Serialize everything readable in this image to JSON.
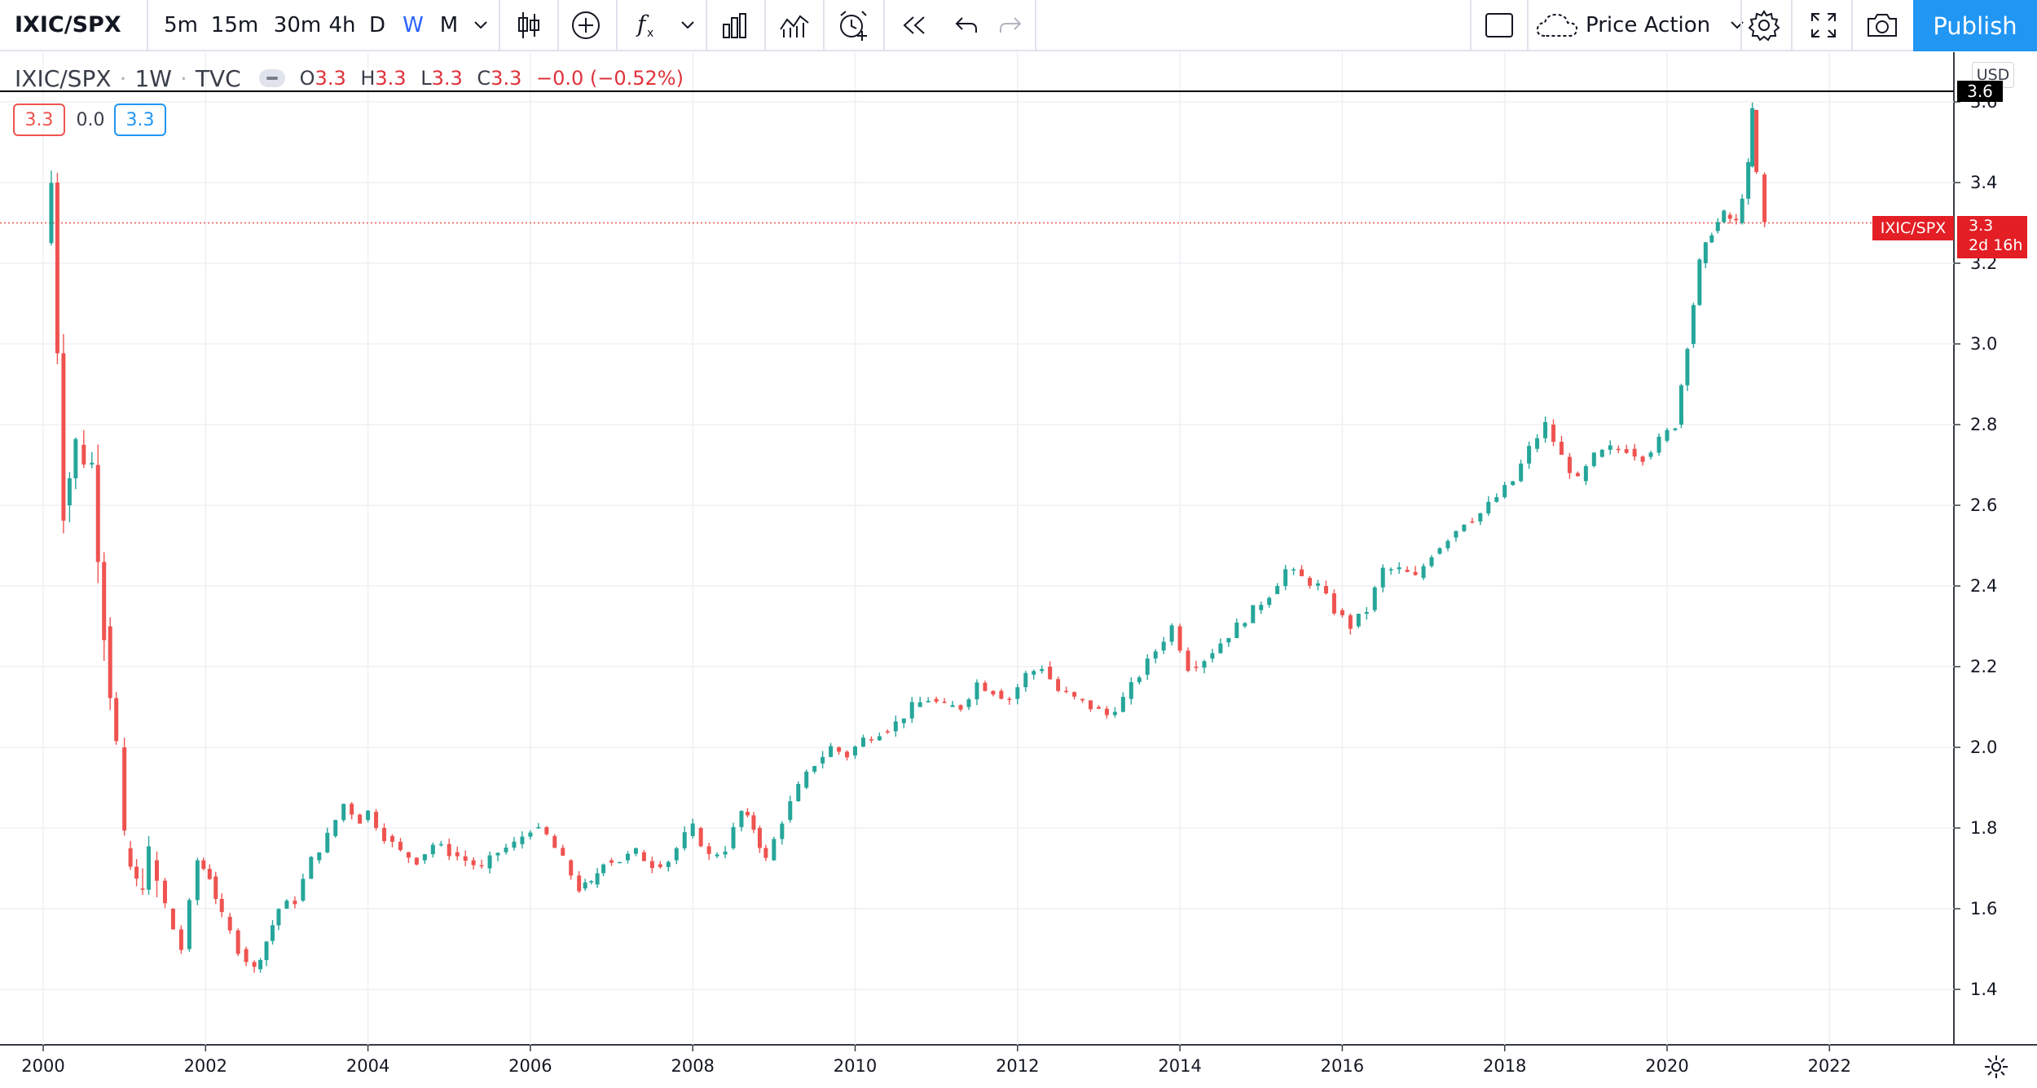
{
  "toolbar": {
    "symbol": "IXIC/SPX",
    "intervals": [
      "5m",
      "15m",
      "30m",
      "4h",
      "D",
      "W",
      "M"
    ],
    "active_interval": "W",
    "template_name": "Price Action",
    "publish_label": "Publish",
    "icons": [
      "chevron-down-icon",
      "candlestick-icon",
      "add-compare-icon",
      "indicators-icon",
      "chevron-down-icon",
      "financials-icon",
      "templates-icon",
      "alert-icon",
      "replay-icon",
      "undo-icon",
      "redo-icon",
      "layout-icon",
      "cloud-icon",
      "settings-icon",
      "fullscreen-icon",
      "snapshot-icon"
    ]
  },
  "legend": {
    "symbol": "IXIC/SPX",
    "interval": "1W",
    "source": "TVC",
    "o_label": "O",
    "o": "3.3",
    "h_label": "H",
    "h": "3.3",
    "l_label": "L",
    "l": "3.3",
    "c_label": "C",
    "c": "3.3",
    "change": "−0.0 (−0.52%)",
    "boxes": {
      "sell": "3.3",
      "spread": "0.0",
      "buy": "3.3"
    }
  },
  "price_axis": {
    "currency": "USD",
    "ticks": [
      "1.4",
      "1.6",
      "1.8",
      "2.0",
      "2.2",
      "2.4",
      "2.6",
      "2.8",
      "3.0",
      "3.2",
      "3.4",
      "3.6"
    ],
    "last_price_label": "IXIC/SPX",
    "last_price": "3.3",
    "countdown": "2d 16h",
    "high_marker": "3.6"
  },
  "time_axis": {
    "ticks": [
      "2000",
      "2002",
      "2004",
      "2006",
      "2008",
      "2010",
      "2012",
      "2014",
      "2016",
      "2018",
      "2020",
      "2022"
    ]
  },
  "colors": {
    "up": "#26a69a",
    "down": "#ef5350",
    "accent": "#2962ff",
    "publish": "#2196f3",
    "last_price_bg": "#e31e24"
  },
  "chart_data": {
    "type": "candlestick",
    "symbol": "IXIC/SPX",
    "interval": "1W",
    "x": [
      2000.0,
      2000.1,
      2000.25,
      2000.4,
      2000.6,
      2000.75,
      2000.9,
      2001.0,
      2001.15,
      2001.3,
      2001.5,
      2001.7,
      2001.9,
      2002.05,
      2002.2,
      2002.4,
      2002.6,
      2002.75,
      2002.9,
      2003.1,
      2003.3,
      2003.5,
      2003.7,
      2003.9,
      2004.0,
      2004.2,
      2004.4,
      2004.6,
      2004.8,
      2005.0,
      2005.2,
      2005.4,
      2005.6,
      2005.8,
      2006.0,
      2006.2,
      2006.4,
      2006.6,
      2006.75,
      2006.9,
      2007.1,
      2007.3,
      2007.5,
      2007.7,
      2007.9,
      2008.0,
      2008.2,
      2008.4,
      2008.6,
      2008.75,
      2008.9,
      2009.1,
      2009.3,
      2009.5,
      2009.7,
      2009.9,
      2010.1,
      2010.3,
      2010.5,
      2010.7,
      2010.9,
      2011.1,
      2011.3,
      2011.5,
      2011.7,
      2011.9,
      2012.1,
      2012.3,
      2012.5,
      2012.7,
      2012.9,
      2013.1,
      2013.3,
      2013.5,
      2013.7,
      2013.9,
      2014.1,
      2014.3,
      2014.5,
      2014.7,
      2014.9,
      2015.1,
      2015.3,
      2015.5,
      2015.7,
      2015.9,
      2016.1,
      2016.3,
      2016.5,
      2016.7,
      2016.9,
      2017.1,
      2017.3,
      2017.5,
      2017.7,
      2017.9,
      2018.1,
      2018.3,
      2018.5,
      2018.7,
      2018.9,
      2019.1,
      2019.3,
      2019.5,
      2019.7,
      2019.9,
      2020.1,
      2020.25,
      2020.4,
      2020.55,
      2020.7,
      2020.85,
      2021.0,
      2021.05,
      2021.1,
      2021.2
    ],
    "y": [
      3.25,
      3.4,
      2.6,
      2.75,
      2.7,
      2.3,
      2.0,
      1.75,
      1.65,
      1.72,
      1.6,
      1.5,
      1.72,
      1.68,
      1.58,
      1.5,
      1.45,
      1.52,
      1.6,
      1.62,
      1.72,
      1.78,
      1.86,
      1.82,
      1.84,
      1.78,
      1.74,
      1.72,
      1.76,
      1.74,
      1.72,
      1.7,
      1.74,
      1.76,
      1.8,
      1.78,
      1.72,
      1.65,
      1.66,
      1.72,
      1.72,
      1.74,
      1.71,
      1.72,
      1.78,
      1.8,
      1.73,
      1.75,
      1.84,
      1.8,
      1.72,
      1.82,
      1.9,
      1.96,
      2.0,
      1.98,
      2.02,
      2.04,
      2.06,
      2.1,
      2.12,
      2.1,
      2.1,
      2.16,
      2.14,
      2.12,
      2.18,
      2.2,
      2.14,
      2.12,
      2.1,
      2.08,
      2.12,
      2.18,
      2.24,
      2.3,
      2.2,
      2.22,
      2.26,
      2.3,
      2.34,
      2.38,
      2.44,
      2.42,
      2.4,
      2.34,
      2.3,
      2.34,
      2.44,
      2.44,
      2.42,
      2.48,
      2.52,
      2.56,
      2.58,
      2.62,
      2.66,
      2.74,
      2.8,
      2.72,
      2.66,
      2.72,
      2.74,
      2.74,
      2.72,
      2.76,
      2.8,
      3.0,
      3.2,
      3.28,
      3.32,
      3.3,
      3.44,
      3.58,
      3.42,
      3.3
    ],
    "ylim": [
      1.35,
      3.65
    ],
    "xlim": [
      2000.0,
      2023.5
    ],
    "last": 3.3,
    "high": 3.6,
    "log_scale": false,
    "grid": true
  }
}
